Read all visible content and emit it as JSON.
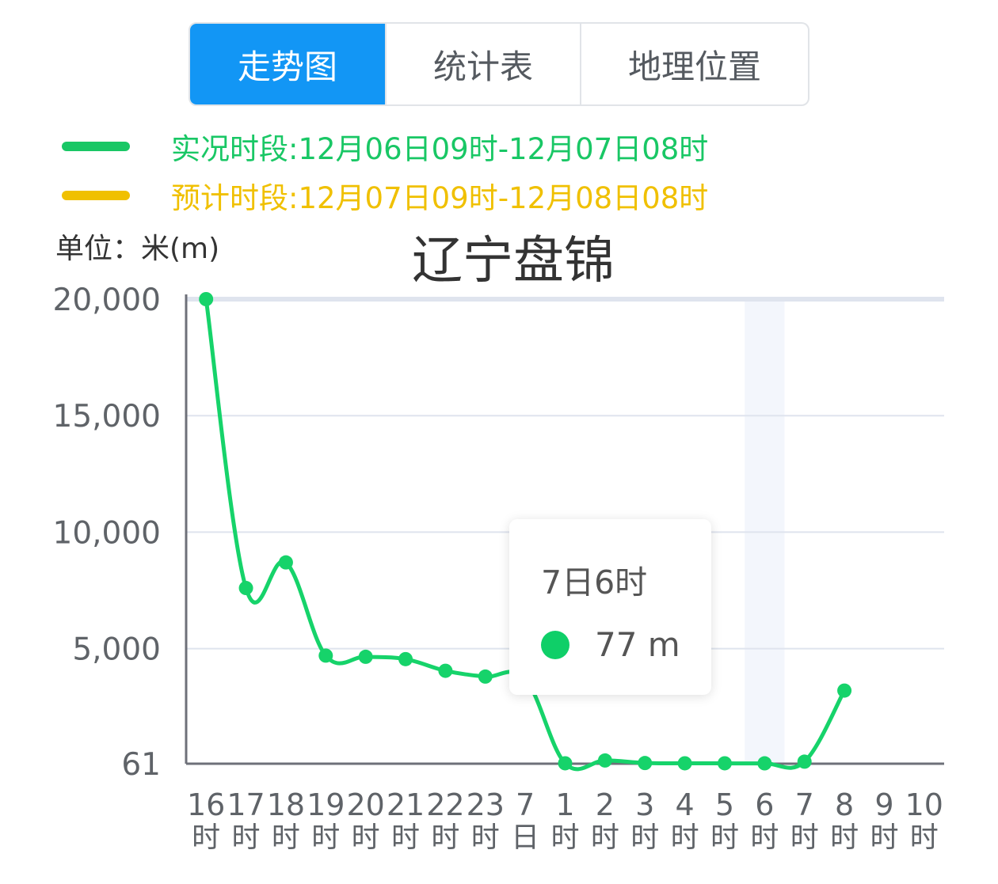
{
  "tabs": [
    {
      "label": "走势图",
      "active": true
    },
    {
      "label": "统计表",
      "active": false
    },
    {
      "label": "地理位置",
      "active": false
    }
  ],
  "legend": [
    {
      "text": "实况时段:12月06日09时-12月07日08时",
      "color": "#19c765"
    },
    {
      "text": "预计时段:12月07日09时-12月08日08时",
      "color": "#f0c000"
    }
  ],
  "unit_label": "单位：米(m)",
  "tooltip": {
    "title": "7日6时",
    "value_text": "77 m",
    "dot_color": "#0fcf68"
  },
  "chart_data": {
    "type": "line",
    "title": "辽宁盘锦",
    "ylabel": "单位：米(m)",
    "y_ticks": [
      "20,000",
      "15,000",
      "10,000",
      "5,000",
      "61"
    ],
    "y_tick_values": [
      20000,
      15000,
      10000,
      5000,
      61
    ],
    "ylim": [
      61,
      20000
    ],
    "x_labels": [
      [
        "16",
        "时"
      ],
      [
        "17",
        "时"
      ],
      [
        "18",
        "时"
      ],
      [
        "19",
        "时"
      ],
      [
        "20",
        "时"
      ],
      [
        "21",
        "时"
      ],
      [
        "22",
        "时"
      ],
      [
        "23",
        "时"
      ],
      [
        "7",
        "日"
      ],
      [
        "1",
        "时"
      ],
      [
        "2",
        "时"
      ],
      [
        "3",
        "时"
      ],
      [
        "4",
        "时"
      ],
      [
        "5",
        "时"
      ],
      [
        "6",
        "时"
      ],
      [
        "7",
        "时"
      ],
      [
        "8",
        "时"
      ],
      [
        "9",
        "时"
      ],
      [
        "10",
        "时"
      ]
    ],
    "series": [
      {
        "values": [
          20000,
          7600,
          8700,
          4700,
          4650,
          4550,
          4050,
          3800,
          3700,
          80,
          200,
          90,
          80,
          80,
          77,
          150,
          3200,
          null,
          null
        ],
        "color": "#16d36a"
      }
    ],
    "highlight_index": 14,
    "grid": true
  }
}
